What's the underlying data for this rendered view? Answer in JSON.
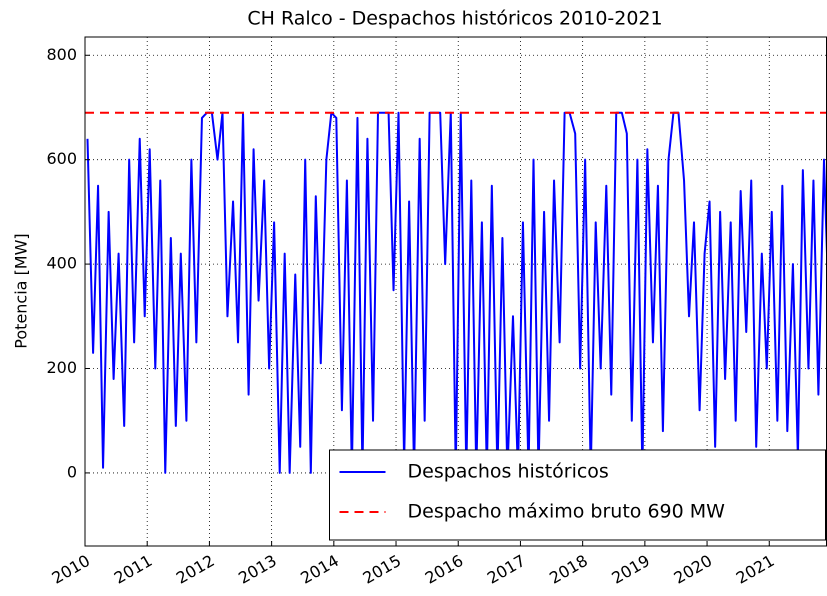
{
  "chart_data": {
    "type": "line",
    "title": "CH Ralco - Despachos históricos 2010-2021",
    "y_label": "Potencia [MW]",
    "xlim": [
      2010,
      2021.92
    ],
    "ylim": [
      -140,
      835
    ],
    "xticks": [
      2010,
      2011,
      2012,
      2013,
      2014,
      2015,
      2016,
      2017,
      2018,
      2019,
      2020,
      2021
    ],
    "yticks": [
      0,
      200,
      400,
      600,
      800
    ],
    "grid": true,
    "legend": "lower right",
    "series": [
      {
        "name": "Despachos históricos",
        "color": "#0000ff",
        "style": "solid",
        "x": [
          2010.04,
          2010.13,
          2010.21,
          2010.29,
          2010.38,
          2010.46,
          2010.54,
          2010.63,
          2010.71,
          2010.79,
          2010.88,
          2010.96,
          2011.04,
          2011.13,
          2011.21,
          2011.29,
          2011.38,
          2011.46,
          2011.54,
          2011.63,
          2011.71,
          2011.79,
          2011.88,
          2011.96,
          2012.04,
          2012.13,
          2012.21,
          2012.29,
          2012.38,
          2012.46,
          2012.54,
          2012.63,
          2012.71,
          2012.79,
          2012.88,
          2012.96,
          2013.04,
          2013.13,
          2013.21,
          2013.29,
          2013.38,
          2013.46,
          2013.54,
          2013.63,
          2013.71,
          2013.79,
          2013.88,
          2013.96,
          2014.04,
          2014.13,
          2014.21,
          2014.29,
          2014.38,
          2014.46,
          2014.54,
          2014.63,
          2014.71,
          2014.79,
          2014.88,
          2014.96,
          2015.04,
          2015.13,
          2015.21,
          2015.29,
          2015.38,
          2015.46,
          2015.54,
          2015.63,
          2015.71,
          2015.79,
          2015.88,
          2015.96,
          2016.04,
          2016.13,
          2016.21,
          2016.29,
          2016.38,
          2016.46,
          2016.54,
          2016.63,
          2016.71,
          2016.79,
          2016.88,
          2016.96,
          2017.04,
          2017.13,
          2017.21,
          2017.29,
          2017.38,
          2017.46,
          2017.54,
          2017.63,
          2017.71,
          2017.79,
          2017.88,
          2017.96,
          2018.04,
          2018.13,
          2018.21,
          2018.29,
          2018.38,
          2018.46,
          2018.54,
          2018.63,
          2018.71,
          2018.79,
          2018.88,
          2018.96,
          2019.04,
          2019.13,
          2019.21,
          2019.29,
          2019.38,
          2019.46,
          2019.54,
          2019.63,
          2019.71,
          2019.79,
          2019.88,
          2019.96,
          2020.04,
          2020.13,
          2020.21,
          2020.29,
          2020.38,
          2020.46,
          2020.54,
          2020.63,
          2020.71,
          2020.79,
          2020.88,
          2020.96,
          2021.04,
          2021.13,
          2021.21,
          2021.29,
          2021.38,
          2021.46,
          2021.54,
          2021.63,
          2021.71,
          2021.79,
          2021.88,
          2021.96
        ],
        "values": [
          640,
          230,
          550,
          10,
          500,
          180,
          420,
          90,
          600,
          250,
          640,
          300,
          620,
          200,
          560,
          0,
          450,
          90,
          420,
          100,
          600,
          250,
          680,
          690,
          690,
          600,
          690,
          300,
          520,
          250,
          690,
          150,
          620,
          330,
          560,
          200,
          480,
          0,
          420,
          0,
          380,
          50,
          600,
          0,
          530,
          210,
          600,
          690,
          680,
          120,
          560,
          0,
          680,
          0,
          640,
          100,
          690,
          690,
          690,
          350,
          690,
          20,
          520,
          0,
          640,
          100,
          690,
          690,
          690,
          400,
          690,
          0,
          690,
          0,
          560,
          0,
          480,
          0,
          550,
          0,
          450,
          0,
          300,
          0,
          480,
          0,
          600,
          0,
          500,
          100,
          560,
          250,
          690,
          690,
          650,
          200,
          600,
          0,
          480,
          200,
          550,
          150,
          690,
          690,
          650,
          100,
          600,
          0,
          620,
          250,
          550,
          80,
          600,
          690,
          690,
          560,
          300,
          480,
          120,
          420,
          520,
          50,
          500,
          180,
          480,
          100,
          540,
          270,
          560,
          50,
          420,
          200,
          500,
          100,
          550,
          80,
          400,
          30,
          580,
          200,
          560,
          150,
          600,
          300
        ]
      },
      {
        "name": "Despacho máximo bruto 690 MW",
        "color": "#ff0000",
        "style": "dashed",
        "x": [
          2010,
          2021.92
        ],
        "values": [
          690,
          690
        ]
      }
    ]
  }
}
